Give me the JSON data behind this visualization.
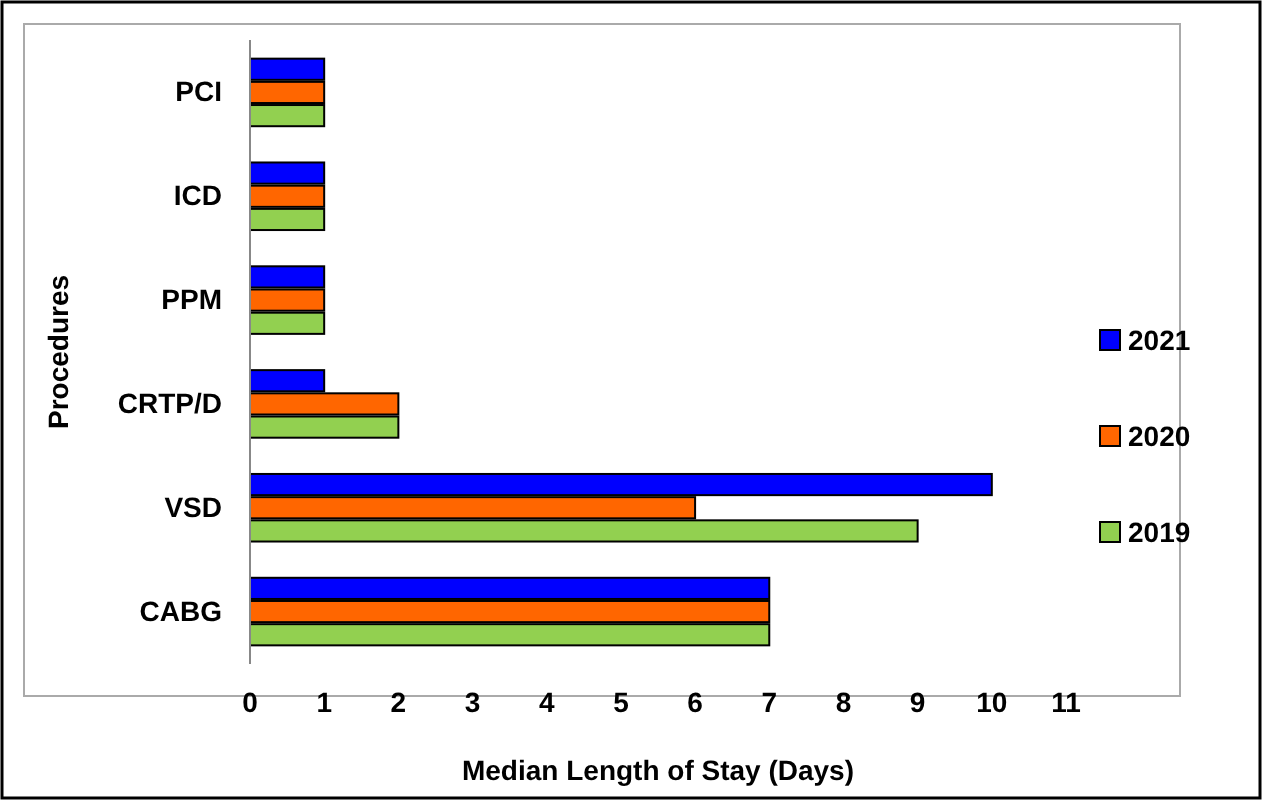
{
  "chart_data": {
    "type": "bar",
    "orientation": "horizontal",
    "xlabel": "Median Length of Stay (Days)",
    "ylabel": "Procedures",
    "categories": [
      "PCI",
      "ICD",
      "PPM",
      "CRTP/D",
      "VSD",
      "CABG"
    ],
    "series": [
      {
        "name": "2021",
        "color": "#0000ff",
        "values": [
          1,
          1,
          1,
          1,
          10,
          7
        ]
      },
      {
        "name": "2020",
        "color": "#ff6600",
        "values": [
          1,
          1,
          1,
          2,
          6,
          7
        ]
      },
      {
        "name": "2019",
        "color": "#92d050",
        "values": [
          1,
          1,
          1,
          2,
          9,
          7
        ]
      }
    ],
    "xlim": [
      0,
      11
    ],
    "xticks": [
      0,
      1,
      2,
      3,
      4,
      5,
      6,
      7,
      8,
      9,
      10,
      11
    ],
    "grid": false,
    "legend": "right"
  }
}
